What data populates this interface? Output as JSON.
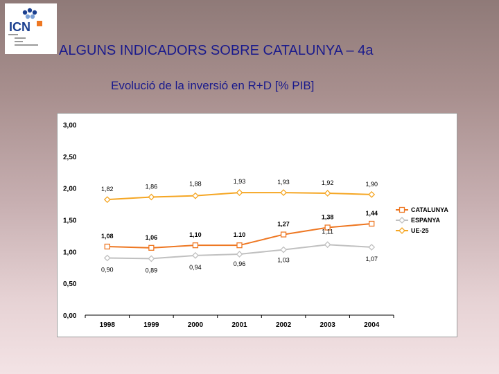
{
  "header": {
    "title": "ALGUNS INDICADORS SOBRE CATALUNYA – 4a",
    "subtitle": "Evolució de la inversió en R+D [% PIB]"
  },
  "logo": {
    "text": "ICN"
  },
  "chart_data": {
    "type": "line",
    "title": "Evolució de la inversió en R+D [% PIB]",
    "xlabel": "",
    "ylabel": "",
    "categories": [
      "1998",
      "1999",
      "2000",
      "2001",
      "2002",
      "2003",
      "2004"
    ],
    "ylim": [
      0,
      3
    ],
    "yticks": [
      "0,00",
      "0,50",
      "1,00",
      "1,50",
      "2,00",
      "2,50",
      "3,00"
    ],
    "grid": false,
    "legend_position": "right",
    "series": [
      {
        "name": "CATALUNYA",
        "color": "#ee7722",
        "marker": "square",
        "values": [
          1.08,
          1.06,
          1.1,
          1.1,
          1.27,
          1.38,
          1.44
        ],
        "labels": [
          "1,08",
          "1,06",
          "1,10",
          "1.10",
          "1,27",
          "1,38",
          "1,44"
        ]
      },
      {
        "name": "ESPANYA",
        "color": "#c0c0c0",
        "marker": "diamond",
        "values": [
          0.9,
          0.89,
          0.94,
          0.96,
          1.03,
          1.11,
          1.07
        ],
        "labels": [
          "0,90",
          "0,89",
          "0,94",
          "0,96",
          "1,03",
          "1,11",
          "1,07"
        ]
      },
      {
        "name": "UE-25",
        "color": "#f5a623",
        "marker": "diamond",
        "values": [
          1.82,
          1.86,
          1.88,
          1.93,
          1.93,
          1.92,
          1.9
        ],
        "labels": [
          "1,82",
          "1,86",
          "1,88",
          "1,93",
          "1,93",
          "1,92",
          "1,90"
        ]
      }
    ]
  }
}
